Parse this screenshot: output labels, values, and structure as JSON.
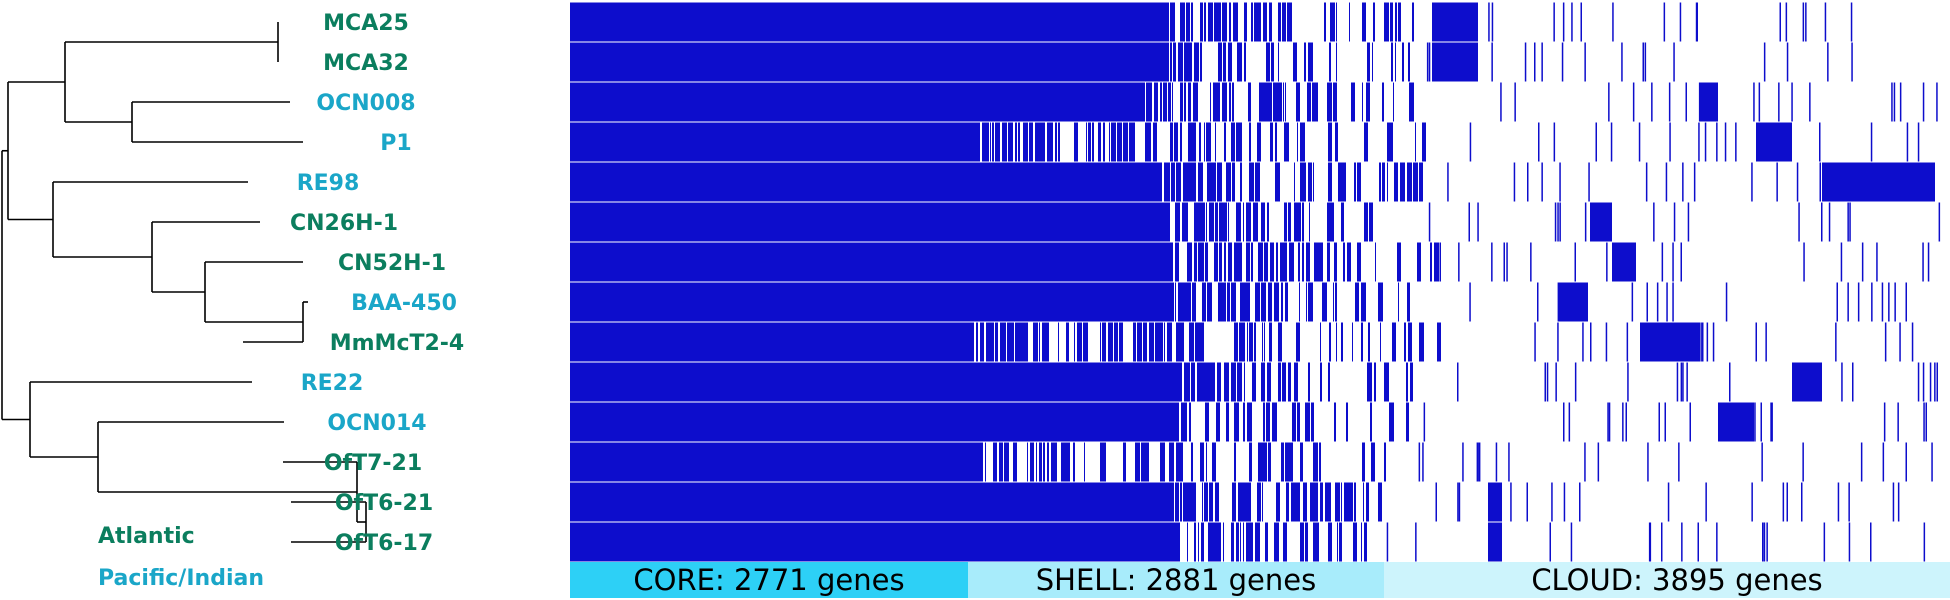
{
  "colors": {
    "atlantic": "#0b7e5e",
    "pacific": "#1aa6c8",
    "presence": "#0d0dcc",
    "absence": "#ffffff",
    "core_bar": "#2dd0f6",
    "shell_bar": "#a8ecfb",
    "cloud_bar": "#cdf4fc"
  },
  "legend": {
    "atlantic": "Atlantic",
    "pacific": "Pacific/Indian"
  },
  "tips": [
    {
      "label": "MCA25",
      "region": "atlantic"
    },
    {
      "label": "MCA32",
      "region": "atlantic"
    },
    {
      "label": "OCN008",
      "region": "pacific"
    },
    {
      "label": "P1",
      "region": "pacific"
    },
    {
      "label": "RE98",
      "region": "pacific"
    },
    {
      "label": "CN26H-1",
      "region": "atlantic"
    },
    {
      "label": "CN52H-1",
      "region": "atlantic"
    },
    {
      "label": "BAA-450",
      "region": "pacific"
    },
    {
      "label": "MmMcT2-4",
      "region": "atlantic"
    },
    {
      "label": "RE22",
      "region": "pacific"
    },
    {
      "label": "OCN014",
      "region": "pacific"
    },
    {
      "label": "OfT7-21",
      "region": "atlantic"
    },
    {
      "label": "OfT6-21",
      "region": "atlantic"
    },
    {
      "label": "OfT6-17",
      "region": "atlantic"
    }
  ],
  "categories": [
    {
      "label": "CORE: 2771 genes",
      "name": "core",
      "genes": 2771
    },
    {
      "label": "SHELL: 2881 genes",
      "name": "shell",
      "genes": 2881
    },
    {
      "label": "CLOUD: 3895 genes",
      "name": "cloud",
      "genes": 3895
    }
  ]
}
